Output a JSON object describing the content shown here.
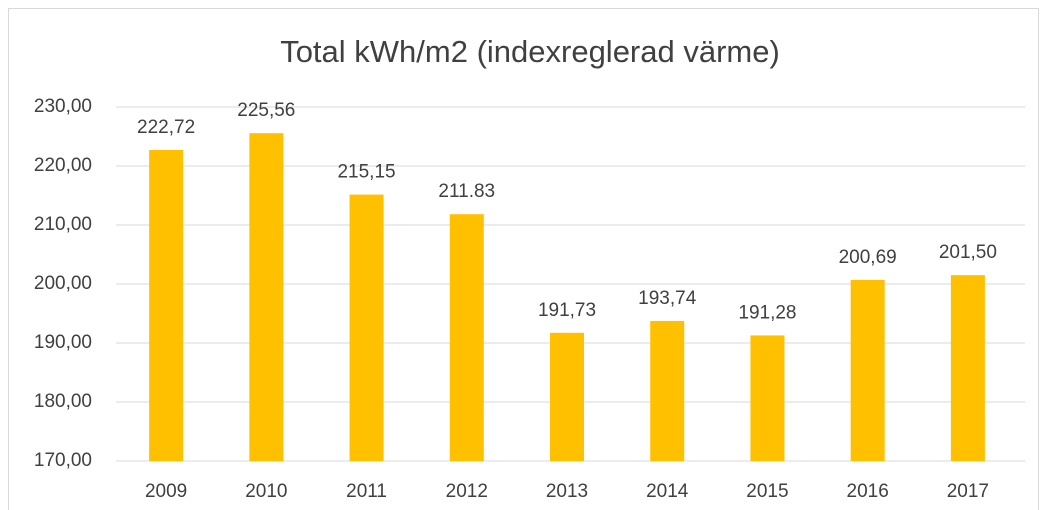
{
  "chart_data": {
    "type": "bar",
    "title": "Total kWh/m2 (indexreglerad värme)",
    "categories": [
      "2009",
      "2010",
      "2011",
      "2012",
      "2013",
      "2014",
      "2015",
      "2016",
      "2017"
    ],
    "values": [
      222.72,
      225.56,
      215.15,
      211.83,
      191.73,
      193.74,
      191.28,
      200.69,
      201.5
    ],
    "value_labels": [
      "222,72",
      "225,56",
      "215,15",
      "211.83",
      "191,73",
      "193,74",
      "191,28",
      "200,69",
      "201,50"
    ],
    "color": "#ffc000",
    "ylim": [
      170,
      230
    ],
    "yticks": [
      {
        "value": 170,
        "label": "170,00"
      },
      {
        "value": 180,
        "label": "180,00"
      },
      {
        "value": 190,
        "label": "190,00"
      },
      {
        "value": 200,
        "label": "200,00"
      },
      {
        "value": 210,
        "label": "210,00"
      },
      {
        "value": 220,
        "label": "220,00"
      },
      {
        "value": 230,
        "label": "230,00"
      }
    ],
    "grid": true
  }
}
